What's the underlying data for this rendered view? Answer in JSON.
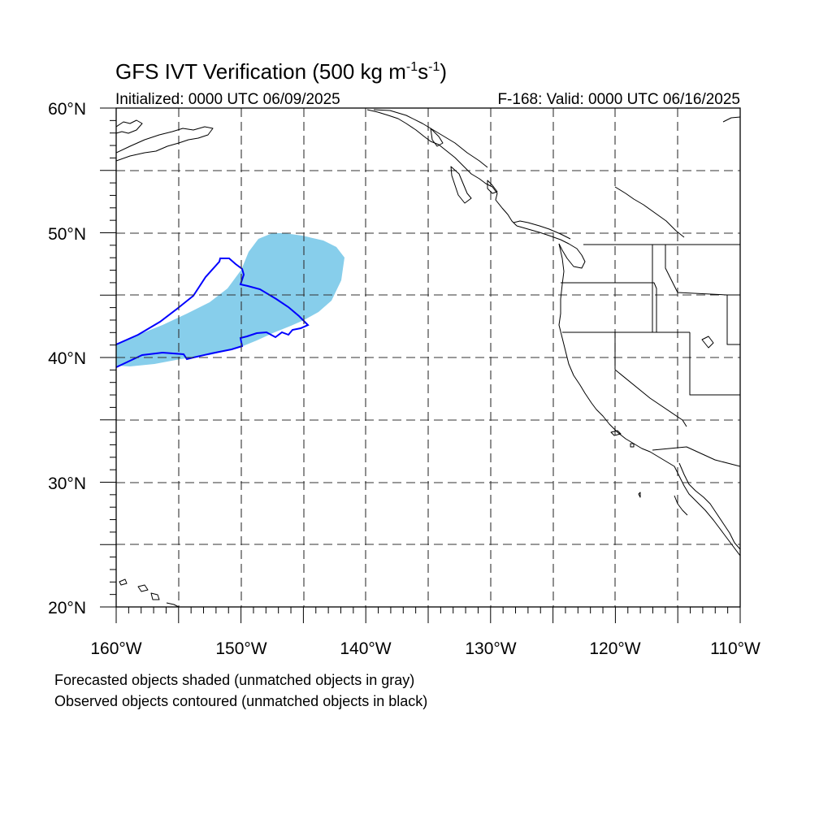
{
  "title": {
    "main": "GFS IVT Verification (500 kg m",
    "sup1": "-1",
    "mid": "s",
    "sup2": "-1",
    "end": ")"
  },
  "initialized": "Initialized: 0000 UTC 06/09/2025",
  "valid": "F-168: Valid: 0000 UTC 06/16/2025",
  "map": {
    "lon_range": [
      -160,
      -110
    ],
    "lat_range": [
      20,
      60
    ],
    "x_ticks": [
      "160°W",
      "150°W",
      "140°W",
      "130°W",
      "120°W",
      "110°W"
    ],
    "y_ticks": [
      "60°N",
      "50°N",
      "40°N",
      "30°N",
      "20°N"
    ],
    "grid_spacing_deg": 5,
    "grid": true
  },
  "colors": {
    "forecast_fill": "#87ceeb",
    "observed_contour": "#0000ff",
    "coastline": "#000000"
  },
  "legend": {
    "line1": "Forecasted objects shaded (unmatched objects in gray)",
    "line2": "Observed objects contoured (unmatched objects in black)"
  }
}
